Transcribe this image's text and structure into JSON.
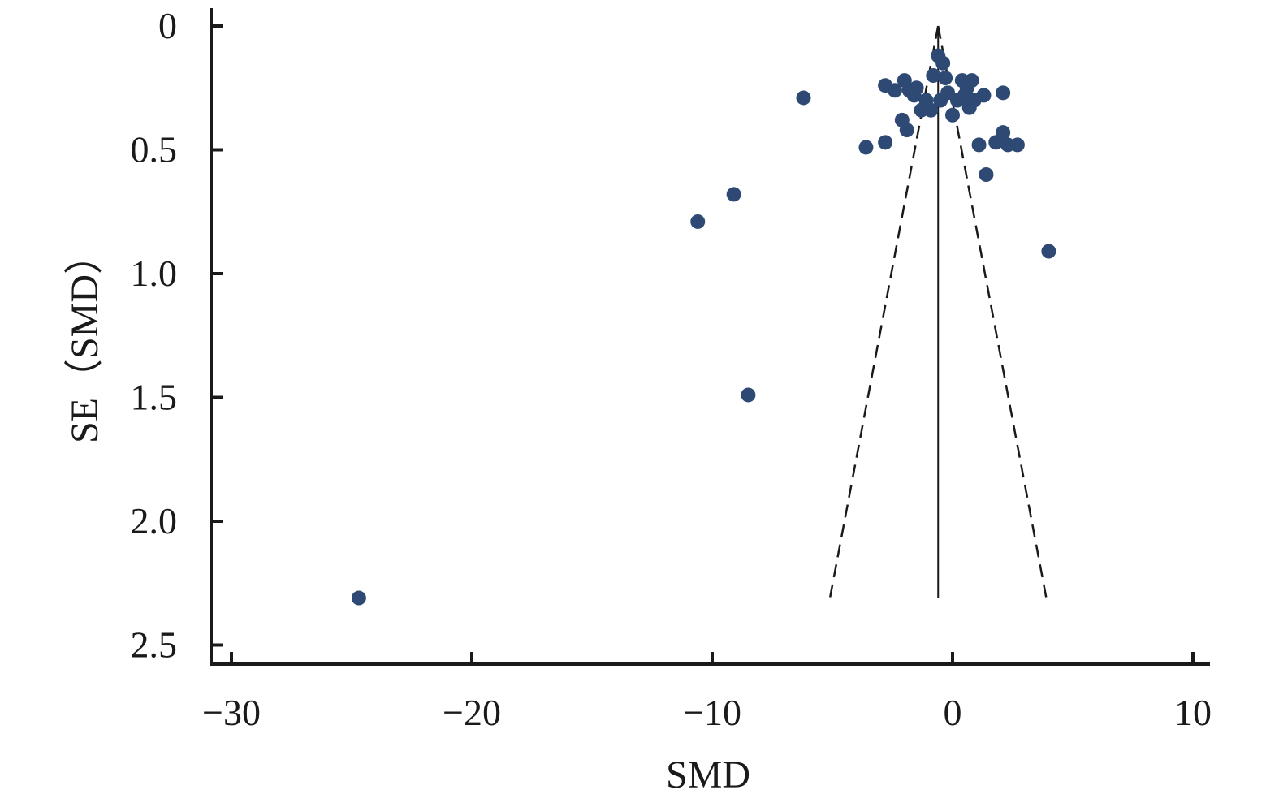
{
  "chart_data": {
    "type": "scatter",
    "title": "",
    "xlabel": "SMD",
    "ylabel": "SE（SMD）",
    "xlim": [
      -30.8,
      10.6
    ],
    "ylim": [
      0,
      2.6
    ],
    "y_reversed": true,
    "x_ticks": [
      -30,
      -20,
      -10,
      0,
      10
    ],
    "x_tick_labels": [
      "−30",
      "−20",
      "−10",
      "0",
      "10"
    ],
    "y_ticks": [
      0,
      0.5,
      1.0,
      1.5,
      2.0,
      2.5
    ],
    "y_tick_labels": [
      "0",
      "0.5",
      "1.0",
      "1.5",
      "2.0",
      "2.5"
    ],
    "grid": false,
    "colors": {
      "points": "#2e4a74",
      "axis": "#1a1a1a",
      "lines": "#1a1a1a"
    },
    "pooled_estimate": -0.6,
    "reference_line": {
      "x": -0.6,
      "y_from": 0,
      "y_to": 2.31
    },
    "funnel": {
      "apex": [
        -0.6,
        0
      ],
      "left_end": [
        -5.1,
        2.31
      ],
      "right_end": [
        3.9,
        2.31
      ]
    },
    "points": [
      {
        "x": -24.7,
        "y": 2.31
      },
      {
        "x": -8.5,
        "y": 1.49
      },
      {
        "x": -10.6,
        "y": 0.79
      },
      {
        "x": -9.1,
        "y": 0.68
      },
      {
        "x": -6.2,
        "y": 0.29
      },
      {
        "x": 4.0,
        "y": 0.91
      },
      {
        "x": 1.4,
        "y": 0.6
      },
      {
        "x": -3.6,
        "y": 0.49
      },
      {
        "x": -2.8,
        "y": 0.47
      },
      {
        "x": -1.9,
        "y": 0.42
      },
      {
        "x": -2.1,
        "y": 0.38
      },
      {
        "x": 1.1,
        "y": 0.48
      },
      {
        "x": 1.8,
        "y": 0.47
      },
      {
        "x": 2.1,
        "y": 0.43
      },
      {
        "x": 2.3,
        "y": 0.48
      },
      {
        "x": 2.7,
        "y": 0.48
      },
      {
        "x": 2.1,
        "y": 0.27
      },
      {
        "x": -2.8,
        "y": 0.24
      },
      {
        "x": -2.4,
        "y": 0.26
      },
      {
        "x": -2.0,
        "y": 0.22
      },
      {
        "x": -1.8,
        "y": 0.26
      },
      {
        "x": -1.6,
        "y": 0.28
      },
      {
        "x": -1.5,
        "y": 0.25
      },
      {
        "x": -1.3,
        "y": 0.34
      },
      {
        "x": -1.1,
        "y": 0.3
      },
      {
        "x": -0.9,
        "y": 0.34
      },
      {
        "x": -0.8,
        "y": 0.2
      },
      {
        "x": -0.6,
        "y": 0.12
      },
      {
        "x": -0.5,
        "y": 0.3
      },
      {
        "x": -0.4,
        "y": 0.15
      },
      {
        "x": -0.3,
        "y": 0.21
      },
      {
        "x": -0.2,
        "y": 0.27
      },
      {
        "x": 0.0,
        "y": 0.36
      },
      {
        "x": 0.2,
        "y": 0.3
      },
      {
        "x": 0.4,
        "y": 0.22
      },
      {
        "x": 0.5,
        "y": 0.28
      },
      {
        "x": 0.6,
        "y": 0.25
      },
      {
        "x": 0.7,
        "y": 0.33
      },
      {
        "x": 0.8,
        "y": 0.22
      },
      {
        "x": 0.9,
        "y": 0.3
      },
      {
        "x": 1.3,
        "y": 0.28
      }
    ]
  }
}
